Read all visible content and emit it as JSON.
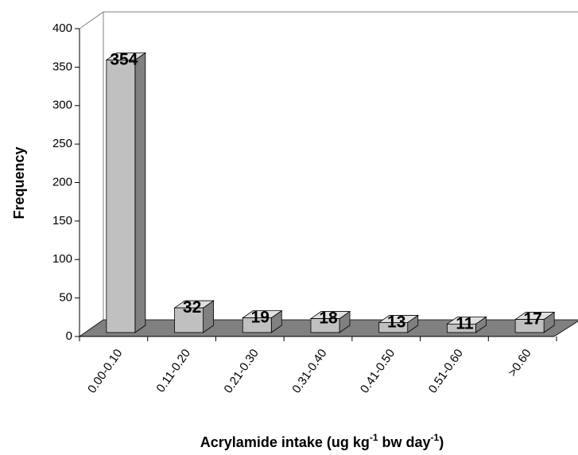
{
  "chart_data": {
    "type": "bar3d",
    "y_label": "Frequency",
    "x_label_parts": [
      "Acrylamide intake (ug kg",
      "-1",
      " bw day",
      "-1",
      ")"
    ],
    "categories": [
      "0.00-0.10",
      "0.11-0.20",
      "0.21-0.30",
      "0.31-0.40",
      "0.41-0.50",
      "0.51-0.60",
      ">0.60"
    ],
    "values": [
      354,
      32,
      19,
      18,
      13,
      11,
      17
    ],
    "color": "#c0c0c0",
    "floor_color": "#808080",
    "ylim": [
      0,
      400
    ],
    "yticks": [
      0,
      50,
      100,
      150,
      200,
      250,
      300,
      350,
      400
    ]
  }
}
